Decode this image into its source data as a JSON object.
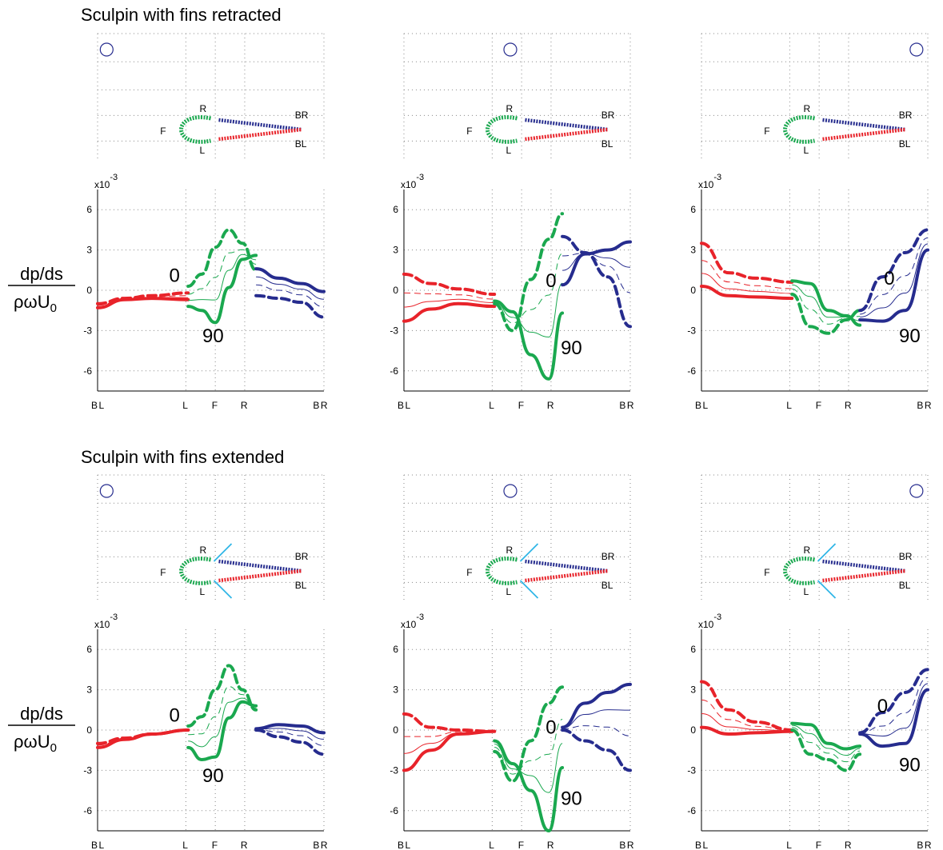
{
  "sections": [
    {
      "title": "Sculpin with fins retracted",
      "fins": false
    },
    {
      "title": "Sculpin with fins extended",
      "fins": true
    }
  ],
  "ylabel": {
    "numerator": "dp/ds",
    "denominator": "ρωU",
    "denominator_sub": "0"
  },
  "exponent_label": {
    "base": "x10",
    "power": "-3"
  },
  "shape_labels": {
    "right": "R",
    "left": "L",
    "front": "F",
    "back_right": "BR",
    "back_left": "BL"
  },
  "colors": {
    "left": "#e8232a",
    "front": "#1aa84f",
    "right": "#262c8e",
    "fin": "#2fb6e6",
    "grid": "#888888",
    "marker": "#262c8e"
  },
  "chart_data": [
    {
      "type": "line",
      "section": "Sculpin with fins retracted",
      "column": 1,
      "x_ticks": [
        "BL",
        "L",
        "F",
        "R",
        "BR"
      ],
      "y_ticks": [
        -6,
        -3,
        0,
        3,
        6
      ],
      "ylim": [
        -7.5,
        7.5
      ],
      "y_scale": "x10^-3",
      "annotations": [
        {
          "text": "0",
          "x": 1.7,
          "y": 1.1
        },
        {
          "text": "90",
          "x": 2.55,
          "y": -3.4
        }
      ],
      "series": [
        {
          "segment": "BL-L",
          "phase": 0,
          "x": [
            0,
            0.6,
            1.2,
            2
          ],
          "y": [
            -1,
            -0.6,
            -0.4,
            -0.2
          ]
        },
        {
          "segment": "BL-L",
          "phase": 90,
          "x": [
            0,
            0.6,
            1.2,
            2
          ],
          "y": [
            -1.3,
            -0.7,
            -0.6,
            -0.7
          ]
        },
        {
          "segment": "L-R",
          "phase": 0,
          "x": [
            2,
            2.3,
            2.6,
            2.9,
            3.2,
            3.5
          ],
          "y": [
            0.3,
            1.2,
            3.2,
            4.5,
            3.5,
            1.5
          ]
        },
        {
          "segment": "L-R",
          "phase": 90,
          "x": [
            2,
            2.3,
            2.6,
            2.9,
            3.2,
            3.5
          ],
          "y": [
            -1.2,
            -1.5,
            -2.4,
            0.2,
            2.3,
            2.6
          ]
        },
        {
          "segment": "R-BR",
          "phase": 0,
          "x": [
            3.5,
            4,
            4.5,
            5
          ],
          "y": [
            -0.4,
            -0.6,
            -0.9,
            -2
          ]
        },
        {
          "segment": "R-BR",
          "phase": 90,
          "x": [
            3.5,
            4,
            4.5,
            5
          ],
          "y": [
            1.6,
            0.9,
            0.5,
            -0.1
          ]
        }
      ]
    },
    {
      "type": "line",
      "section": "Sculpin with fins retracted",
      "column": 2,
      "x_ticks": [
        "BL",
        "L",
        "F",
        "R",
        "BR"
      ],
      "y_ticks": [
        -6,
        -3,
        0,
        3,
        6
      ],
      "ylim": [
        -7.5,
        7.5
      ],
      "y_scale": "x10^-3",
      "annotations": [
        {
          "text": "0",
          "x": 3.25,
          "y": 0.7
        },
        {
          "text": "90",
          "x": 3.7,
          "y": -4.3
        }
      ],
      "series": [
        {
          "segment": "BL-L",
          "phase": 0,
          "x": [
            0,
            0.6,
            1.2,
            2
          ],
          "y": [
            1.2,
            0.5,
            0.1,
            -0.3
          ]
        },
        {
          "segment": "BL-L",
          "phase": 90,
          "x": [
            0,
            0.6,
            1.2,
            2
          ],
          "y": [
            -2.3,
            -1.4,
            -1,
            -1.2
          ]
        },
        {
          "segment": "L-F-R",
          "phase": 0,
          "x": [
            2,
            2.4,
            2.8,
            3.2,
            3.5
          ],
          "y": [
            -1,
            -3,
            0.8,
            3.8,
            5.7
          ]
        },
        {
          "segment": "L-F-R",
          "phase": 90,
          "x": [
            2,
            2.4,
            2.8,
            3.2,
            3.5
          ],
          "y": [
            -0.8,
            -1.6,
            -4.8,
            -6.6,
            -1.7
          ]
        },
        {
          "segment": "R-BR",
          "phase": 0,
          "x": [
            3.5,
            4,
            4.5,
            5
          ],
          "y": [
            4,
            2.8,
            1,
            -2.7
          ]
        },
        {
          "segment": "R-BR",
          "phase": 90,
          "x": [
            3.5,
            4,
            4.5,
            5
          ],
          "y": [
            0.4,
            2.7,
            3,
            3.6
          ]
        }
      ]
    },
    {
      "type": "line",
      "section": "Sculpin with fins retracted",
      "column": 3,
      "x_ticks": [
        "BL",
        "L",
        "F",
        "R",
        "BR"
      ],
      "y_ticks": [
        -6,
        -3,
        0,
        3,
        6
      ],
      "ylim": [
        -7.5,
        7.5
      ],
      "y_scale": "x10^-3",
      "annotations": [
        {
          "text": "0",
          "x": 4.15,
          "y": 0.9
        },
        {
          "text": "90",
          "x": 4.6,
          "y": -3.4
        }
      ],
      "series": [
        {
          "segment": "BL-L",
          "phase": 0,
          "x": [
            0,
            0.6,
            1.2,
            2
          ],
          "y": [
            3.5,
            1.3,
            0.9,
            0.6
          ]
        },
        {
          "segment": "BL-L",
          "phase": 90,
          "x": [
            0,
            0.6,
            1.2,
            2
          ],
          "y": [
            0.3,
            -0.4,
            -0.5,
            -0.6
          ]
        },
        {
          "segment": "L-R",
          "phase": 0,
          "x": [
            2,
            2.4,
            2.8,
            3.2,
            3.5
          ],
          "y": [
            -0.3,
            -2.7,
            -3.2,
            -2.2,
            -1.5
          ]
        },
        {
          "segment": "L-R",
          "phase": 90,
          "x": [
            2,
            2.4,
            2.8,
            3.2,
            3.5
          ],
          "y": [
            0.7,
            0.5,
            -1.5,
            -1.9,
            -2.6
          ]
        },
        {
          "segment": "R-BR",
          "phase": 0,
          "x": [
            3.5,
            4,
            4.5,
            5
          ],
          "y": [
            -1.5,
            1,
            2.8,
            4.5
          ]
        },
        {
          "segment": "R-BR",
          "phase": 90,
          "x": [
            3.5,
            4,
            4.5,
            5
          ],
          "y": [
            -2.2,
            -2.3,
            -1.5,
            3
          ]
        }
      ]
    },
    {
      "type": "line",
      "section": "Sculpin with fins extended",
      "column": 1,
      "x_ticks": [
        "BL",
        "L",
        "F",
        "R",
        "BR"
      ],
      "y_ticks": [
        -6,
        -3,
        0,
        3,
        6
      ],
      "ylim": [
        -7.5,
        7.5
      ],
      "y_scale": "x10^-3",
      "annotations": [
        {
          "text": "0",
          "x": 1.7,
          "y": 1.1
        },
        {
          "text": "90",
          "x": 2.55,
          "y": -3.4
        }
      ],
      "series": [
        {
          "segment": "BL-L",
          "phase": 0,
          "x": [
            0,
            0.6,
            1.2,
            2
          ],
          "y": [
            -1,
            -0.6,
            -0.3,
            0
          ]
        },
        {
          "segment": "BL-L",
          "phase": 90,
          "x": [
            0,
            0.6,
            1.2,
            2
          ],
          "y": [
            -1.3,
            -0.7,
            -0.3,
            0
          ]
        },
        {
          "segment": "L-R",
          "phase": 0,
          "x": [
            2,
            2.3,
            2.6,
            2.9,
            3.2,
            3.5
          ],
          "y": [
            0.3,
            1,
            3,
            4.8,
            3,
            1.5
          ]
        },
        {
          "segment": "L-R",
          "phase": 90,
          "x": [
            2,
            2.3,
            2.6,
            2.9,
            3.2,
            3.5
          ],
          "y": [
            -1.3,
            -2.2,
            -2,
            0.9,
            2.1,
            1.8
          ]
        },
        {
          "segment": "R-BR",
          "phase": 0,
          "x": [
            3.5,
            4,
            4.5,
            5
          ],
          "y": [
            0,
            -0.5,
            -0.9,
            -1.8
          ]
        },
        {
          "segment": "R-BR",
          "phase": 90,
          "x": [
            3.5,
            4,
            4.5,
            5
          ],
          "y": [
            0.1,
            0.4,
            0.3,
            -0.2
          ]
        }
      ]
    },
    {
      "type": "line",
      "section": "Sculpin with fins extended",
      "column": 2,
      "x_ticks": [
        "BL",
        "L",
        "F",
        "R",
        "BR"
      ],
      "y_ticks": [
        -6,
        -3,
        0,
        3,
        6
      ],
      "ylim": [
        -7.5,
        7.5
      ],
      "y_scale": "x10^-3",
      "annotations": [
        {
          "text": "0",
          "x": 3.25,
          "y": 0.2
        },
        {
          "text": "90",
          "x": 3.7,
          "y": -5.1
        }
      ],
      "series": [
        {
          "segment": "BL-L",
          "phase": 0,
          "x": [
            0,
            0.6,
            1.2,
            2
          ],
          "y": [
            1.2,
            0.2,
            0,
            -0.1
          ]
        },
        {
          "segment": "BL-L",
          "phase": 90,
          "x": [
            0,
            0.6,
            1.2,
            2
          ],
          "y": [
            -3,
            -1.5,
            -0.3,
            -0.1
          ]
        },
        {
          "segment": "L-F-R",
          "phase": 0,
          "x": [
            2,
            2.4,
            2.8,
            3.2,
            3.5
          ],
          "y": [
            -1.6,
            -3.8,
            -0.8,
            2,
            3.2
          ]
        },
        {
          "segment": "L-F-R",
          "phase": 90,
          "x": [
            2,
            2.4,
            2.8,
            3.2,
            3.5
          ],
          "y": [
            -0.8,
            -2.5,
            -4.5,
            -7.5,
            -2.8
          ]
        },
        {
          "segment": "R-BR",
          "phase": 0,
          "x": [
            3.5,
            4,
            4.5,
            5
          ],
          "y": [
            0,
            -0.8,
            -1.5,
            -3
          ]
        },
        {
          "segment": "R-BR",
          "phase": 90,
          "x": [
            3.5,
            4,
            4.5,
            5
          ],
          "y": [
            0.2,
            2,
            2.8,
            3.4
          ]
        }
      ]
    },
    {
      "type": "line",
      "section": "Sculpin with fins extended",
      "column": 3,
      "x_ticks": [
        "BL",
        "L",
        "F",
        "R",
        "BR"
      ],
      "y_ticks": [
        -6,
        -3,
        0,
        3,
        6
      ],
      "ylim": [
        -7.5,
        7.5
      ],
      "y_scale": "x10^-3",
      "annotations": [
        {
          "text": "0",
          "x": 4.0,
          "y": 1.8
        },
        {
          "text": "90",
          "x": 4.6,
          "y": -2.6
        }
      ],
      "series": [
        {
          "segment": "BL-L",
          "phase": 0,
          "x": [
            0,
            0.6,
            1.2,
            2
          ],
          "y": [
            3.6,
            1.5,
            0.6,
            0
          ]
        },
        {
          "segment": "BL-L",
          "phase": 90,
          "x": [
            0,
            0.6,
            1.2,
            2
          ],
          "y": [
            0.2,
            -0.3,
            -0.2,
            -0.1
          ]
        },
        {
          "segment": "L-R",
          "phase": 0,
          "x": [
            2,
            2.4,
            2.8,
            3.2,
            3.5
          ],
          "y": [
            0,
            -1.8,
            -2.2,
            -3,
            -1.8
          ]
        },
        {
          "segment": "L-R",
          "phase": 90,
          "x": [
            2,
            2.4,
            2.8,
            3.2,
            3.5
          ],
          "y": [
            0.5,
            0.4,
            -1,
            -1.4,
            -1.2
          ]
        },
        {
          "segment": "R-BR",
          "phase": 0,
          "x": [
            3.5,
            4,
            4.5,
            5
          ],
          "y": [
            -0.2,
            1.3,
            2.8,
            4.5
          ]
        },
        {
          "segment": "R-BR",
          "phase": 90,
          "x": [
            3.5,
            4,
            4.5,
            5
          ],
          "y": [
            -0.3,
            -1.2,
            -1,
            3
          ]
        }
      ]
    }
  ]
}
